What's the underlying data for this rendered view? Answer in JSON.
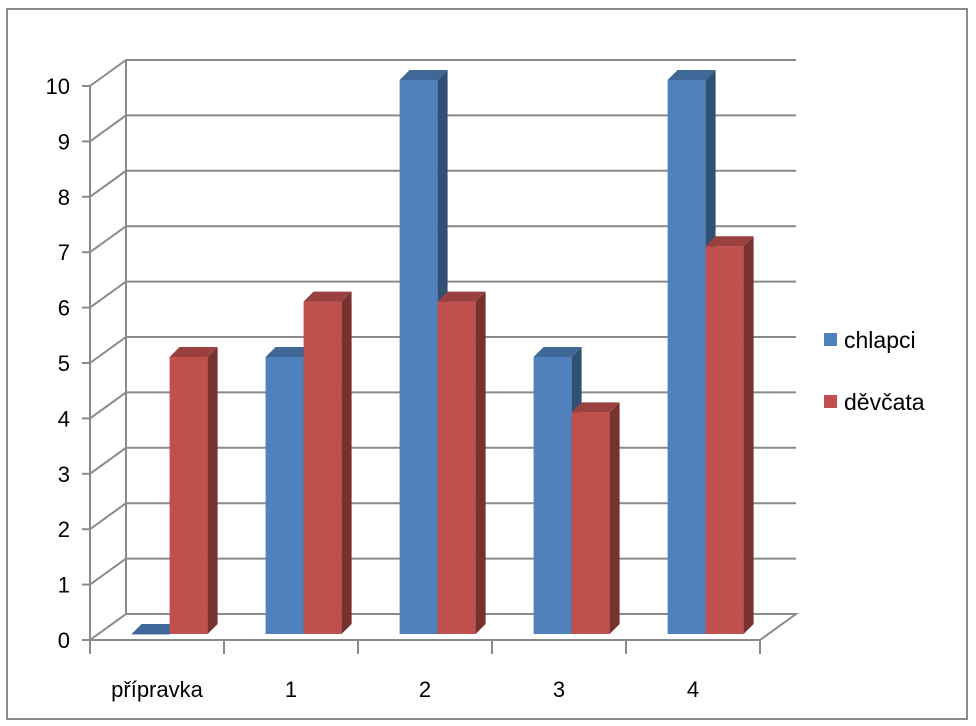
{
  "chart_data": {
    "type": "bar",
    "categories": [
      "přípravka",
      "1",
      "2",
      "3",
      "4"
    ],
    "series": [
      {
        "name": "chlapci",
        "values": [
          0,
          5,
          10,
          5,
          10
        ],
        "color": "#4F81BD"
      },
      {
        "name": "děvčata",
        "values": [
          5,
          6,
          6,
          4,
          7
        ],
        "color": "#C0504D"
      }
    ],
    "ylim": [
      0,
      10
    ],
    "yticks": [
      "0",
      "1",
      "2",
      "3",
      "4",
      "5",
      "6",
      "7",
      "8",
      "9",
      "10"
    ],
    "grid": true,
    "legend_position": "right",
    "style": "3d-clustered-column",
    "title": "",
    "xlabel": "",
    "ylabel": ""
  }
}
